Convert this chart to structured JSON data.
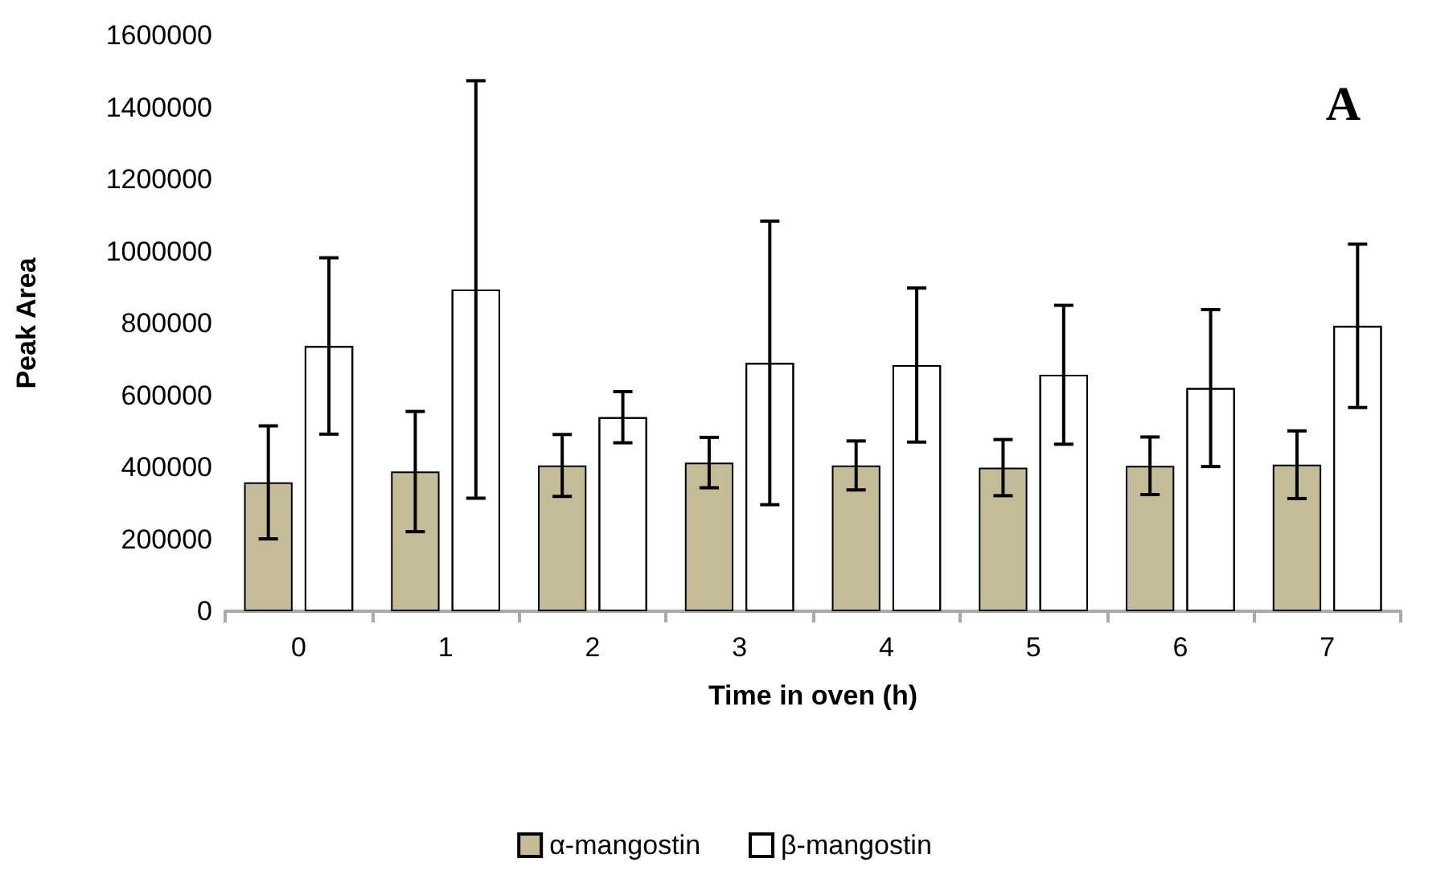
{
  "chart_data": {
    "type": "bar",
    "xlabel": "Time in oven (h)",
    "ylabel": "Peak Area",
    "annotations": [
      "A"
    ],
    "categories": [
      "0",
      "1",
      "2",
      "3",
      "4",
      "5",
      "6",
      "7"
    ],
    "series": [
      {
        "name": "α-mangostin",
        "color": "#c4bc96",
        "values": [
          358000,
          388000,
          405000,
          413000,
          405000,
          399000,
          404000,
          407000
        ],
        "errors": [
          157000,
          167000,
          86000,
          70000,
          68000,
          78000,
          80000,
          94000
        ]
      },
      {
        "name": "β-mangostin",
        "color": "#ffffff",
        "values": [
          737000,
          894000,
          539000,
          690000,
          684000,
          657000,
          620000,
          793000
        ],
        "errors": [
          245000,
          580000,
          71000,
          394000,
          214000,
          193000,
          218000,
          227000
        ]
      }
    ],
    "ylim": [
      0,
      1600000
    ],
    "yticks": [
      0,
      200000,
      400000,
      600000,
      800000,
      1000000,
      1200000,
      1400000,
      1600000
    ],
    "grid": false,
    "legend": "bottom"
  }
}
